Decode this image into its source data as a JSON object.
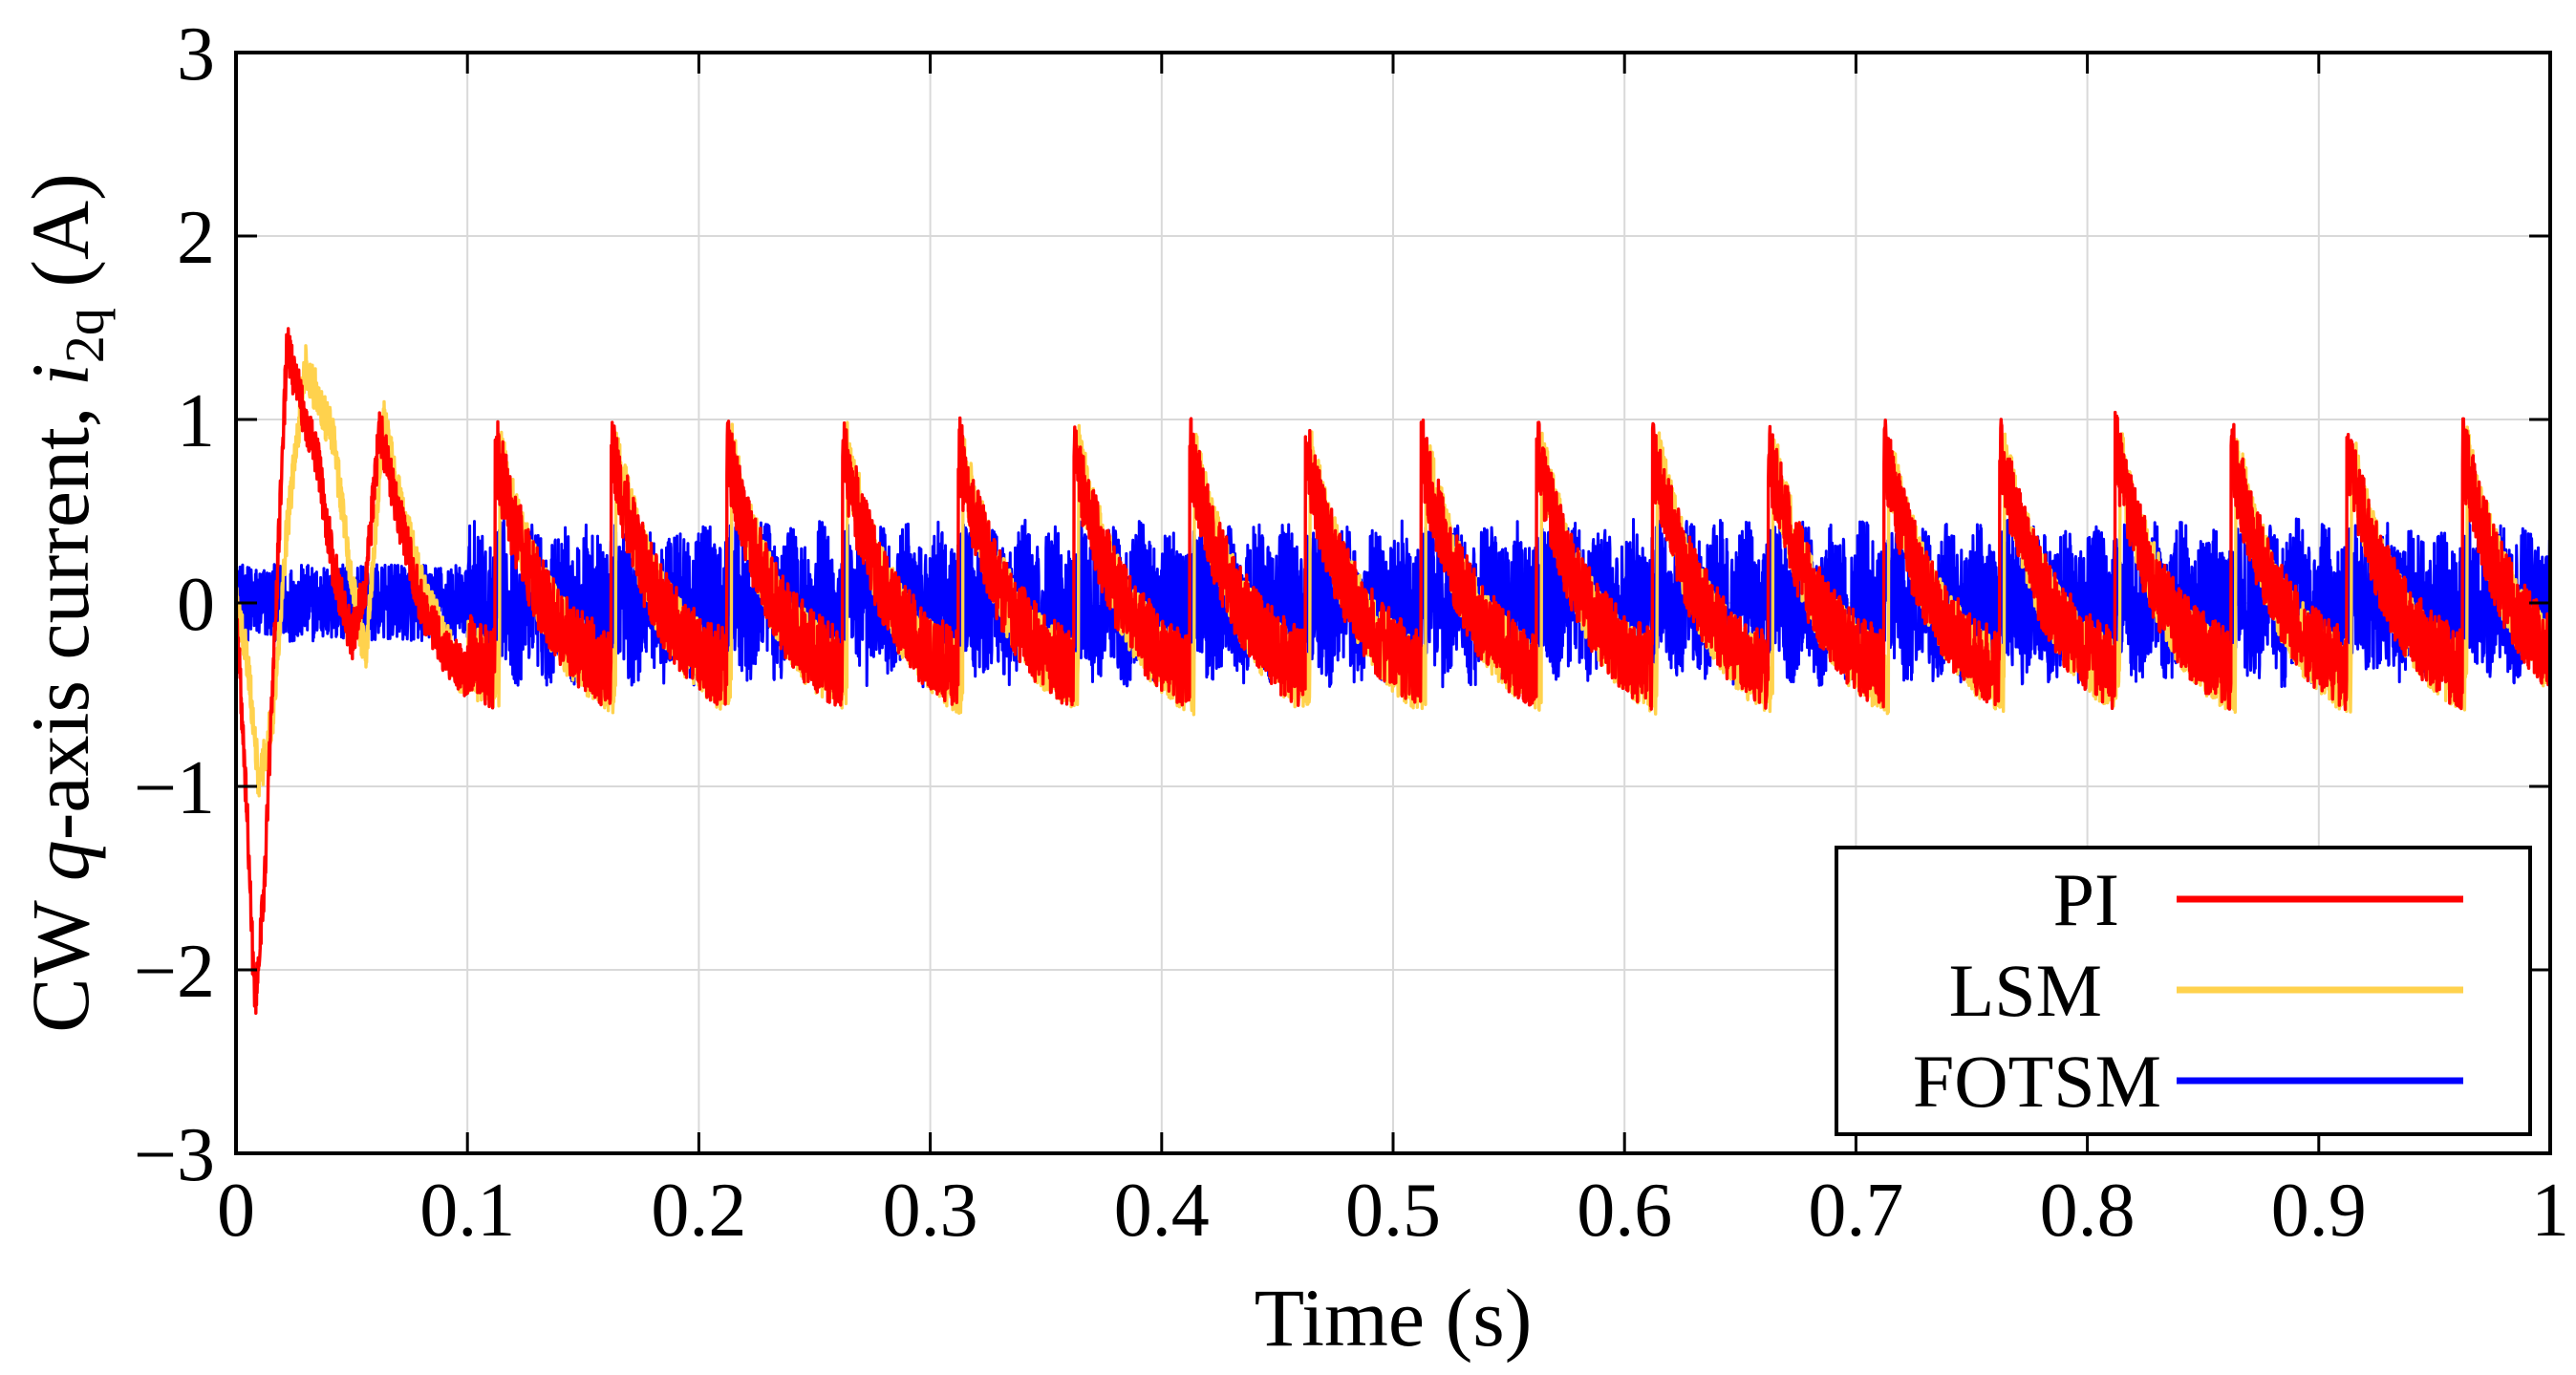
{
  "chart_data": {
    "type": "line",
    "title": "",
    "xlabel": "Time (s)",
    "ylabel_parts": {
      "prefix": "CW ",
      "q_italic": "q",
      "mid": "-axis current, ",
      "i_italic": "i",
      "subscript": "2q",
      "unit": " (A)"
    },
    "xlim": [
      0,
      1
    ],
    "ylim": [
      -3,
      3
    ],
    "grid": true,
    "legend_position": "bottom-right",
    "x_ticks": [
      0,
      0.1,
      0.2,
      0.3,
      0.4,
      0.5,
      0.6,
      0.7,
      0.8,
      0.9,
      1
    ],
    "x_tick_labels": [
      "0",
      "0.1",
      "0.2",
      "0.3",
      "0.4",
      "0.5",
      "0.6",
      "0.7",
      "0.8",
      "0.9",
      "1"
    ],
    "y_ticks": [
      3,
      2,
      1,
      0,
      -1,
      -2,
      -3
    ],
    "y_tick_labels": [
      "3",
      "2",
      "1",
      "0",
      "−1",
      "−2",
      "−3"
    ],
    "period_s": 0.05,
    "series": [
      {
        "name": "PI",
        "color": "#ff0000",
        "x": [
          0,
          0.005,
          0.008,
          0.012,
          0.018,
          0.022,
          0.028,
          0.035,
          0.042,
          0.05,
          0.056,
          0.062,
          0.07,
          0.08,
          0.09,
          0.1
        ],
        "y": [
          0,
          -1.2,
          -2.2,
          -1.6,
          0.2,
          1.4,
          1.1,
          0.8,
          0.2,
          -0.2,
          0.1,
          0.95,
          0.5,
          0.0,
          -0.25,
          -0.4
        ],
        "steady_peak_y": 0.85,
        "steady_trough_y": -0.5,
        "noise_amplitude": 0.22
      },
      {
        "name": "LSM",
        "color": "#ffd24d",
        "x": [
          0,
          0.005,
          0.01,
          0.016,
          0.022,
          0.03,
          0.036,
          0.042,
          0.05,
          0.056,
          0.064,
          0.07,
          0.08,
          0.09,
          0.1
        ],
        "y": [
          0,
          -0.3,
          -1.0,
          -0.6,
          0.4,
          1.3,
          1.1,
          0.9,
          0.1,
          -0.3,
          1.0,
          0.6,
          0.1,
          -0.2,
          -0.45
        ],
        "steady_peak_y": 0.8,
        "steady_trough_y": -0.55,
        "noise_amplitude": 0.2
      },
      {
        "name": "FOTSM",
        "color": "#0000ff",
        "x": [
          0,
          0.1
        ],
        "y": [
          0,
          0
        ],
        "steady_peak_y": 0.45,
        "steady_trough_y": -0.45,
        "noise_amplitude": 0.35
      }
    ]
  }
}
